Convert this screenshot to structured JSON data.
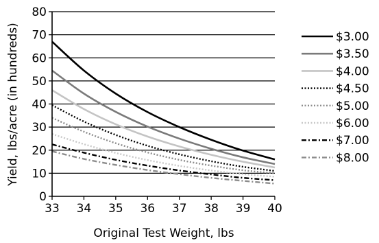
{
  "chart_data": {
    "type": "line",
    "xlabel": "Original Test Weight, lbs",
    "ylabel": "Yield, lbs/acre (in hundreds)",
    "xlim": [
      33,
      40
    ],
    "ylim": [
      0,
      80
    ],
    "x_ticks": [
      33,
      34,
      35,
      36,
      37,
      38,
      39,
      40
    ],
    "y_ticks": [
      0,
      10,
      20,
      30,
      40,
      50,
      60,
      70,
      80
    ],
    "grid": "horizontal",
    "legend_position": "right",
    "x": [
      33,
      34,
      35,
      36,
      37,
      38,
      39,
      40
    ],
    "series": [
      {
        "name": "$3.00",
        "values": [
          67.0,
          54.5,
          44.5,
          36.5,
          30.0,
          24.5,
          19.8,
          16.0
        ],
        "color": "#000000",
        "dash": "solid",
        "width": 2.6
      },
      {
        "name": "$3.50",
        "values": [
          54.5,
          44.5,
          36.6,
          30.2,
          25.0,
          20.6,
          16.9,
          14.0
        ],
        "color": "#7a7a7a",
        "dash": "solid",
        "width": 2.6
      },
      {
        "name": "$4.00",
        "values": [
          46.0,
          37.8,
          31.2,
          25.9,
          21.6,
          18.0,
          15.0,
          12.5
        ],
        "color": "#c4c4c4",
        "dash": "solid",
        "width": 2.6
      },
      {
        "name": "$4.50",
        "values": [
          39.5,
          32.4,
          26.6,
          21.9,
          18.2,
          15.2,
          12.8,
          11.0
        ],
        "color": "#000000",
        "dash": "dot",
        "width": 2.4
      },
      {
        "name": "$5.00",
        "values": [
          34.0,
          28.0,
          23.0,
          19.0,
          15.8,
          13.3,
          11.3,
          10.0
        ],
        "color": "#8c8c8c",
        "dash": "dot",
        "width": 2.4
      },
      {
        "name": "$6.00",
        "values": [
          27.0,
          22.6,
          18.8,
          15.7,
          13.2,
          11.2,
          9.6,
          8.5
        ],
        "color": "#c8c8c8",
        "dash": "dot",
        "width": 2.4
      },
      {
        "name": "$7.00",
        "values": [
          22.5,
          18.9,
          15.8,
          13.3,
          11.2,
          9.5,
          8.0,
          7.0
        ],
        "color": "#000000",
        "dash": "dashdot",
        "width": 2.4
      },
      {
        "name": "$8.00",
        "values": [
          19.5,
          16.2,
          13.6,
          11.4,
          9.6,
          8.0,
          6.7,
          5.5
        ],
        "color": "#8c8c8c",
        "dash": "dashdot",
        "width": 2.4
      }
    ]
  }
}
